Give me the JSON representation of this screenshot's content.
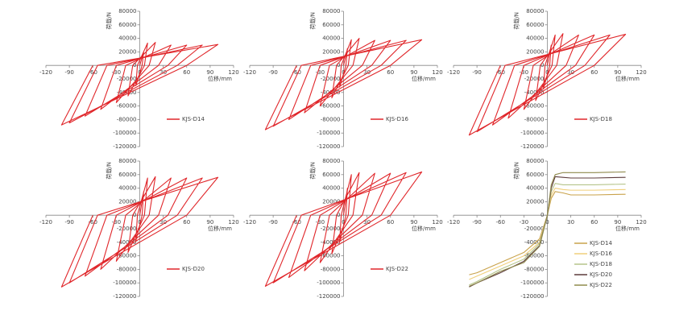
{
  "chart_data": [
    {
      "type": "line",
      "xlabel": "位移/mm",
      "ylabel": "荷载/N",
      "legend": "right",
      "xlim": [
        -120,
        120
      ],
      "ylim": [
        -120000,
        80000
      ],
      "xticks": [
        -120,
        -90,
        -60,
        -30,
        0,
        30,
        60,
        90,
        120
      ],
      "yticks": [
        -120000,
        -100000,
        -80000,
        -60000,
        -40000,
        -20000,
        0,
        20000,
        40000,
        60000,
        80000
      ],
      "x": [
        0,
        5,
        3,
        -5,
        -3,
        10,
        6,
        -15,
        -9,
        20,
        12,
        -30,
        -18,
        40,
        24,
        -50,
        -30,
        60,
        36,
        -70,
        -42,
        80,
        48,
        -90,
        -54,
        100,
        60,
        -100,
        -60
      ],
      "series": [
        {
          "name": "KJS-D14",
          "color": "#e0262a",
          "values": [
            0,
            20000,
            0,
            -30000,
            0,
            33000,
            0,
            -45000,
            0,
            34000,
            0,
            -55000,
            0,
            30000,
            0,
            -65000,
            0,
            30000,
            0,
            -75000,
            0,
            30000,
            0,
            -85000,
            0,
            31000,
            0,
            -88000,
            0
          ]
        }
      ]
    },
    {
      "type": "line",
      "xlabel": "位移/mm",
      "ylabel": "荷载/N",
      "legend": "right",
      "xlim": [
        -120,
        120
      ],
      "ylim": [
        -120000,
        80000
      ],
      "xticks": [
        -120,
        -90,
        -60,
        -30,
        0,
        30,
        60,
        90,
        120
      ],
      "yticks": [
        -120000,
        -100000,
        -80000,
        -60000,
        -40000,
        -20000,
        0,
        20000,
        40000,
        60000,
        80000
      ],
      "x": [
        0,
        5,
        3,
        -5,
        -3,
        10,
        6,
        -15,
        -9,
        20,
        12,
        -30,
        -18,
        40,
        24,
        -50,
        -30,
        60,
        36,
        -70,
        -42,
        80,
        48,
        -90,
        -54,
        100,
        60,
        -100,
        -60
      ],
      "series": [
        {
          "name": "KJS-D16",
          "color": "#e0262a",
          "values": [
            0,
            25000,
            0,
            -32000,
            0,
            38000,
            0,
            -48000,
            0,
            40000,
            0,
            -60000,
            0,
            37000,
            0,
            -70000,
            0,
            37000,
            0,
            -80000,
            0,
            37000,
            0,
            -90000,
            0,
            38000,
            0,
            -95000,
            0
          ]
        }
      ]
    },
    {
      "type": "line",
      "xlabel": "位移/mm",
      "ylabel": "荷载/N",
      "legend": "right",
      "xlim": [
        -120,
        120
      ],
      "ylim": [
        -120000,
        80000
      ],
      "xticks": [
        -120,
        -90,
        -60,
        -30,
        0,
        30,
        60,
        90,
        120
      ],
      "yticks": [
        -120000,
        -100000,
        -80000,
        -60000,
        -40000,
        -20000,
        0,
        20000,
        40000,
        60000,
        80000
      ],
      "x": [
        0,
        5,
        3,
        -5,
        -3,
        10,
        6,
        -15,
        -9,
        20,
        12,
        -30,
        -18,
        40,
        24,
        -50,
        -30,
        60,
        36,
        -70,
        -42,
        80,
        48,
        -90,
        -54,
        100,
        60,
        -100,
        -60
      ],
      "series": [
        {
          "name": "KJS-D18",
          "color": "#e0262a",
          "values": [
            0,
            30000,
            0,
            -35000,
            0,
            45000,
            0,
            -52000,
            0,
            47000,
            0,
            -65000,
            0,
            45000,
            0,
            -78000,
            0,
            45000,
            0,
            -88000,
            0,
            45000,
            0,
            -98000,
            0,
            46000,
            0,
            -103000,
            0
          ]
        }
      ]
    },
    {
      "type": "line",
      "xlabel": "位移/mm",
      "ylabel": "荷载/N",
      "legend": "right",
      "xlim": [
        -120,
        120
      ],
      "ylim": [
        -120000,
        80000
      ],
      "xticks": [
        -120,
        -90,
        -60,
        -30,
        0,
        30,
        60,
        90,
        120
      ],
      "yticks": [
        -120000,
        -100000,
        -80000,
        -60000,
        -40000,
        -20000,
        0,
        20000,
        40000,
        60000,
        80000
      ],
      "x": [
        0,
        5,
        3,
        -5,
        -3,
        10,
        6,
        -15,
        -9,
        20,
        12,
        -30,
        -18,
        40,
        24,
        -50,
        -30,
        60,
        36,
        -70,
        -42,
        80,
        48,
        -90,
        -54,
        100,
        60,
        -100,
        -60
      ],
      "series": [
        {
          "name": "KJS-D20",
          "color": "#e0262a",
          "values": [
            0,
            35000,
            0,
            -38000,
            0,
            55000,
            0,
            -55000,
            0,
            57000,
            0,
            -68000,
            0,
            55000,
            0,
            -80000,
            0,
            55000,
            0,
            -90000,
            0,
            55000,
            0,
            -100000,
            0,
            56000,
            0,
            -106000,
            0
          ]
        }
      ]
    },
    {
      "type": "line",
      "xlabel": "位移/mm",
      "ylabel": "荷载/N",
      "legend": "right",
      "xlim": [
        -120,
        120
      ],
      "ylim": [
        -120000,
        80000
      ],
      "xticks": [
        -120,
        -90,
        -60,
        -30,
        0,
        30,
        60,
        90,
        120
      ],
      "yticks": [
        -120000,
        -100000,
        -80000,
        -60000,
        -40000,
        -20000,
        0,
        20000,
        40000,
        60000,
        80000
      ],
      "x": [
        0,
        5,
        3,
        -5,
        -3,
        10,
        6,
        -15,
        -9,
        20,
        12,
        -30,
        -18,
        40,
        24,
        -50,
        -30,
        60,
        36,
        -70,
        -42,
        80,
        48,
        -90,
        -54,
        100,
        60,
        -100,
        -60
      ],
      "series": [
        {
          "name": "KJS-D22",
          "color": "#e0262a",
          "values": [
            0,
            40000,
            0,
            -40000,
            0,
            60000,
            0,
            -57000,
            0,
            63000,
            0,
            -70000,
            0,
            62000,
            0,
            -82000,
            0,
            62000,
            0,
            -92000,
            0,
            63000,
            0,
            -100000,
            0,
            64000,
            0,
            -105000,
            0
          ]
        }
      ]
    },
    {
      "type": "line",
      "xlabel": "位移/mm",
      "ylabel": "荷载/N",
      "legend": "lower right",
      "xlim": [
        -120,
        120
      ],
      "ylim": [
        -120000,
        80000
      ],
      "xticks": [
        -120,
        -90,
        -60,
        -30,
        0,
        30,
        60,
        90,
        120
      ],
      "yticks": [
        -120000,
        -100000,
        -80000,
        -60000,
        -40000,
        -20000,
        0,
        20000,
        40000,
        60000,
        80000
      ],
      "x": [
        -100,
        -90,
        -60,
        -30,
        -10,
        0,
        5,
        10,
        20,
        30,
        60,
        100
      ],
      "series": [
        {
          "name": "KJS-D14",
          "color": "#c9a24a",
          "values": [
            -88000,
            -85000,
            -70000,
            -55000,
            -35000,
            0,
            25000,
            35000,
            33000,
            30000,
            30000,
            31000
          ]
        },
        {
          "name": "KJS-D16",
          "color": "#f0cf7a",
          "values": [
            -95000,
            -90000,
            -75000,
            -60000,
            -40000,
            0,
            30000,
            40000,
            38000,
            37000,
            37000,
            38000
          ]
        },
        {
          "name": "KJS-D18",
          "color": "#b5c48a",
          "values": [
            -103000,
            -98000,
            -80000,
            -65000,
            -42000,
            0,
            35000,
            47000,
            45000,
            45000,
            45000,
            46000
          ]
        },
        {
          "name": "KJS-D20",
          "color": "#5c3b3b",
          "values": [
            -106000,
            -100000,
            -85000,
            -68000,
            -45000,
            0,
            40000,
            57000,
            56000,
            55000,
            55000,
            56000
          ]
        },
        {
          "name": "KJS-D22",
          "color": "#8f8a4c",
          "values": [
            -105000,
            -100000,
            -83000,
            -70000,
            -46000,
            0,
            45000,
            60000,
            63000,
            63000,
            63000,
            64000
          ]
        }
      ]
    }
  ]
}
